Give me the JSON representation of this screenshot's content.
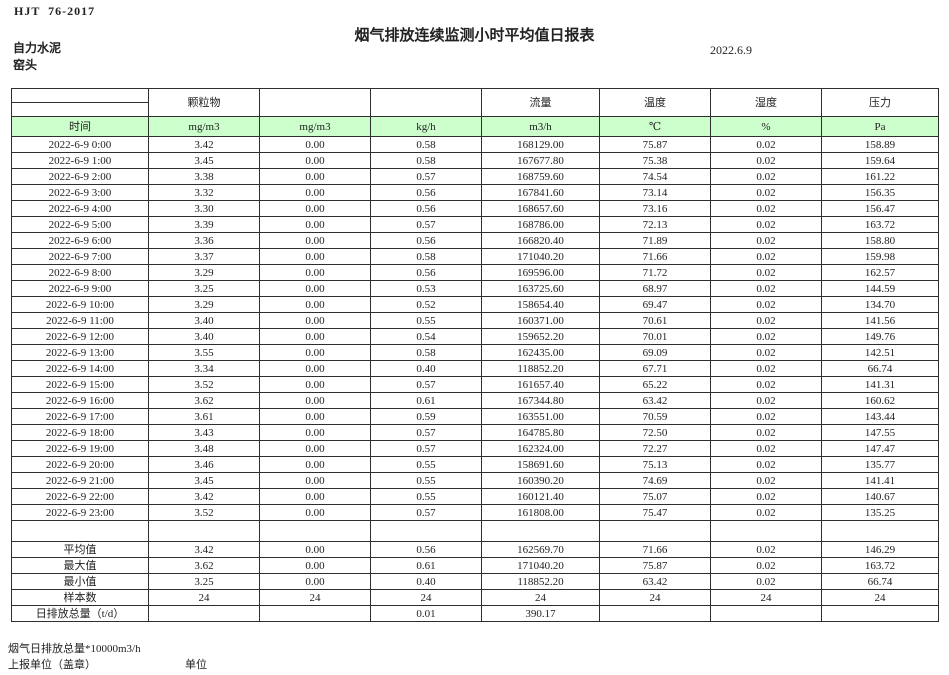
{
  "page": {
    "doc_code": "HJT  76-2017",
    "title": "烟气排放连续监测小时平均值日报表",
    "date": "2022.6.9",
    "company": "自力水泥",
    "station": "窑头"
  },
  "colors": {
    "header_green": "#ccffcc"
  },
  "table": {
    "header_groups": [
      "",
      "颗粒物",
      "",
      "",
      "流量",
      "温度",
      "湿度",
      "压力"
    ],
    "header_units": [
      "时间",
      "mg/m3",
      "mg/m3",
      "kg/h",
      "m3/h",
      "℃",
      "%",
      "Pa"
    ],
    "rows": [
      [
        "2022-6-9 0:00",
        "3.42",
        "0.00",
        "0.58",
        "168129.00",
        "75.87",
        "0.02",
        "158.89"
      ],
      [
        "2022-6-9 1:00",
        "3.45",
        "0.00",
        "0.58",
        "167677.80",
        "75.38",
        "0.02",
        "159.64"
      ],
      [
        "2022-6-9 2:00",
        "3.38",
        "0.00",
        "0.57",
        "168759.60",
        "74.54",
        "0.02",
        "161.22"
      ],
      [
        "2022-6-9 3:00",
        "3.32",
        "0.00",
        "0.56",
        "167841.60",
        "73.14",
        "0.02",
        "156.35"
      ],
      [
        "2022-6-9 4:00",
        "3.30",
        "0.00",
        "0.56",
        "168657.60",
        "73.16",
        "0.02",
        "156.47"
      ],
      [
        "2022-6-9 5:00",
        "3.39",
        "0.00",
        "0.57",
        "168786.00",
        "72.13",
        "0.02",
        "163.72"
      ],
      [
        "2022-6-9 6:00",
        "3.36",
        "0.00",
        "0.56",
        "166820.40",
        "71.89",
        "0.02",
        "158.80"
      ],
      [
        "2022-6-9 7:00",
        "3.37",
        "0.00",
        "0.58",
        "171040.20",
        "71.66",
        "0.02",
        "159.98"
      ],
      [
        "2022-6-9 8:00",
        "3.29",
        "0.00",
        "0.56",
        "169596.00",
        "71.72",
        "0.02",
        "162.57"
      ],
      [
        "2022-6-9 9:00",
        "3.25",
        "0.00",
        "0.53",
        "163725.60",
        "68.97",
        "0.02",
        "144.59"
      ],
      [
        "2022-6-9 10:00",
        "3.29",
        "0.00",
        "0.52",
        "158654.40",
        "69.47",
        "0.02",
        "134.70"
      ],
      [
        "2022-6-9 11:00",
        "3.40",
        "0.00",
        "0.55",
        "160371.00",
        "70.61",
        "0.02",
        "141.56"
      ],
      [
        "2022-6-9 12:00",
        "3.40",
        "0.00",
        "0.54",
        "159652.20",
        "70.01",
        "0.02",
        "149.76"
      ],
      [
        "2022-6-9 13:00",
        "3.55",
        "0.00",
        "0.58",
        "162435.00",
        "69.09",
        "0.02",
        "142.51"
      ],
      [
        "2022-6-9 14:00",
        "3.34",
        "0.00",
        "0.40",
        "118852.20",
        "67.71",
        "0.02",
        "66.74"
      ],
      [
        "2022-6-9 15:00",
        "3.52",
        "0.00",
        "0.57",
        "161657.40",
        "65.22",
        "0.02",
        "141.31"
      ],
      [
        "2022-6-9 16:00",
        "3.62",
        "0.00",
        "0.61",
        "167344.80",
        "63.42",
        "0.02",
        "160.62"
      ],
      [
        "2022-6-9 17:00",
        "3.61",
        "0.00",
        "0.59",
        "163551.00",
        "70.59",
        "0.02",
        "143.44"
      ],
      [
        "2022-6-9 18:00",
        "3.43",
        "0.00",
        "0.57",
        "164785.80",
        "72.50",
        "0.02",
        "147.55"
      ],
      [
        "2022-6-9 19:00",
        "3.48",
        "0.00",
        "0.57",
        "162324.00",
        "72.27",
        "0.02",
        "147.47"
      ],
      [
        "2022-6-9 20:00",
        "3.46",
        "0.00",
        "0.55",
        "158691.60",
        "75.13",
        "0.02",
        "135.77"
      ],
      [
        "2022-6-9 21:00",
        "3.45",
        "0.00",
        "0.55",
        "160390.20",
        "74.69",
        "0.02",
        "141.41"
      ],
      [
        "2022-6-9 22:00",
        "3.42",
        "0.00",
        "0.55",
        "160121.40",
        "75.07",
        "0.02",
        "140.67"
      ],
      [
        "2022-6-9 23:00",
        "3.52",
        "0.00",
        "0.57",
        "161808.00",
        "75.47",
        "0.02",
        "135.25"
      ]
    ],
    "summary": [
      [
        "平均值",
        "3.42",
        "0.00",
        "0.56",
        "162569.70",
        "71.66",
        "0.02",
        "146.29"
      ],
      [
        "最大值",
        "3.62",
        "0.00",
        "0.61",
        "171040.20",
        "75.87",
        "0.02",
        "163.72"
      ],
      [
        "最小值",
        "3.25",
        "0.00",
        "0.40",
        "118852.20",
        "63.42",
        "0.02",
        "66.74"
      ],
      [
        "样本数",
        "24",
        "24",
        "24",
        "24",
        "24",
        "24",
        "24"
      ],
      [
        "日排放总量（t/d）",
        "",
        "",
        "0.01",
        "390.17",
        "",
        "",
        ""
      ]
    ]
  },
  "footer": {
    "note1": "烟气日排放总量*10000m3/h",
    "note2": "上报单位（盖章）",
    "note3": "单位"
  }
}
